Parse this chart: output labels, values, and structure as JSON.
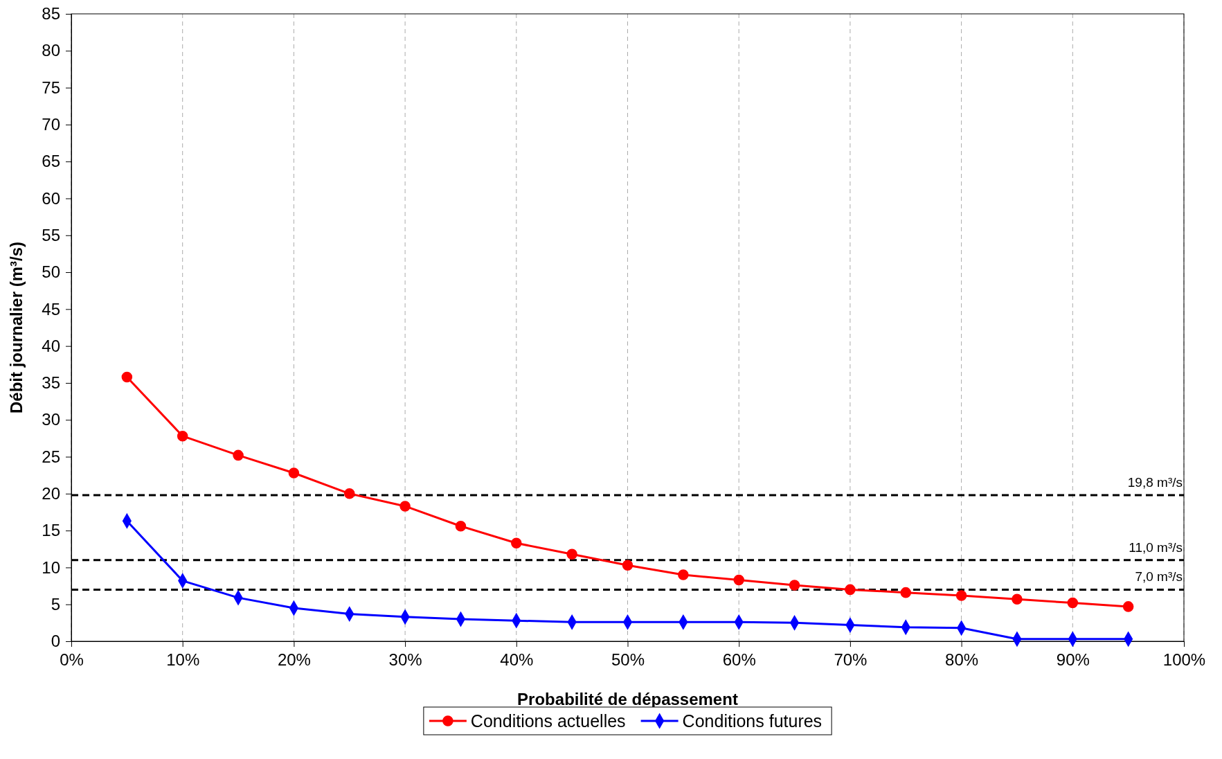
{
  "chart_data": {
    "type": "line",
    "xlabel": "Probabilité de dépassement",
    "ylabel": "Débit journalier (m³/s)",
    "x": [
      5,
      10,
      15,
      20,
      25,
      30,
      35,
      40,
      45,
      50,
      55,
      60,
      65,
      70,
      75,
      80,
      85,
      90,
      95
    ],
    "series": [
      {
        "name": "Conditions actuelles",
        "color": "#ff0000",
        "marker": "circle",
        "values": [
          35.8,
          27.8,
          25.2,
          22.8,
          20.0,
          18.3,
          15.6,
          13.3,
          11.8,
          10.3,
          9.0,
          8.3,
          7.6,
          7.0,
          6.6,
          6.2,
          5.7,
          5.2,
          4.7
        ]
      },
      {
        "name": "Conditions futures",
        "color": "#0000ff",
        "marker": "diamond",
        "values": [
          16.3,
          8.2,
          5.9,
          4.5,
          3.7,
          3.3,
          3.0,
          2.8,
          2.6,
          2.6,
          2.6,
          2.6,
          2.5,
          2.2,
          1.9,
          1.8,
          0.3,
          0.3,
          0.3
        ]
      }
    ],
    "xlim": [
      0,
      100
    ],
    "xticks": [
      {
        "value": 0,
        "label": "0%"
      },
      {
        "value": 10,
        "label": "10%"
      },
      {
        "value": 20,
        "label": "20%"
      },
      {
        "value": 30,
        "label": "30%"
      },
      {
        "value": 40,
        "label": "40%"
      },
      {
        "value": 50,
        "label": "50%"
      },
      {
        "value": 60,
        "label": "60%"
      },
      {
        "value": 70,
        "label": "70%"
      },
      {
        "value": 80,
        "label": "80%"
      },
      {
        "value": 90,
        "label": "90%"
      },
      {
        "value": 100,
        "label": "100%"
      }
    ],
    "ylim": [
      0,
      85
    ],
    "yticks": [
      0,
      5,
      10,
      15,
      20,
      25,
      30,
      35,
      40,
      45,
      50,
      55,
      60,
      65,
      70,
      75,
      80,
      85
    ],
    "ref_lines": [
      {
        "axis": "y",
        "value": 19.8,
        "label": "19,8 m³/s",
        "color": "#000000",
        "line_style": "dashed"
      },
      {
        "axis": "y",
        "value": 11.0,
        "label": "11,0 m³/s",
        "color": "#000000",
        "line_style": "dashed"
      },
      {
        "axis": "y",
        "value": 7.0,
        "label": "7,0 m³/s",
        "color": "#000000",
        "line_style": "dashed"
      }
    ],
    "grid": "x",
    "legend": "bottom",
    "line_style": "solid"
  }
}
